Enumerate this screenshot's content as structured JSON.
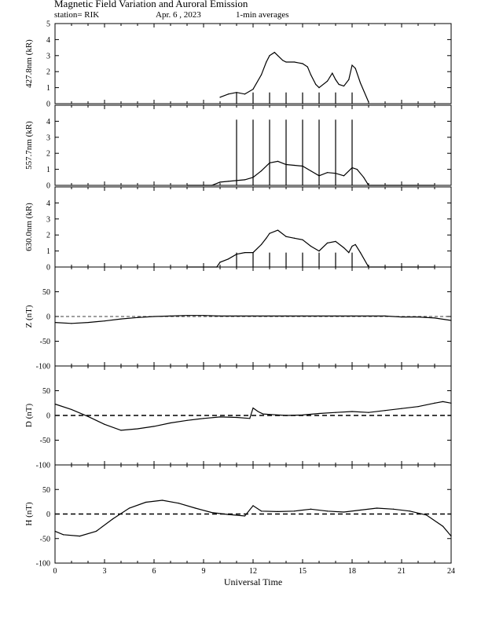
{
  "header": {
    "title": "Magnetic Field Variation and Auroral Emission",
    "station": "station= RIK",
    "date": "Apr. 6 , 2023",
    "averaging": "1-min averages"
  },
  "chart_data": [
    {
      "type": "line",
      "id": "p4278",
      "ylabel": "427.8nm (kR)",
      "ylim": [
        0,
        5
      ],
      "yticks": [
        0,
        1,
        2,
        3,
        4,
        5
      ],
      "xlim": [
        0,
        24
      ],
      "series": [
        {
          "x": [
            10.0,
            10.5,
            11.0,
            11.5,
            12.0,
            12.5,
            12.8,
            13.0,
            13.3,
            13.5,
            13.8,
            14.0,
            14.5,
            15.0,
            15.3,
            15.5,
            15.8,
            16.0,
            16.5,
            16.8,
            17.0,
            17.2,
            17.5,
            17.8,
            18.0,
            18.2,
            18.5,
            19.0
          ],
          "y": [
            0.4,
            0.6,
            0.7,
            0.6,
            0.9,
            1.8,
            2.6,
            3.0,
            3.2,
            3.0,
            2.7,
            2.6,
            2.6,
            2.5,
            2.3,
            1.8,
            1.2,
            1.0,
            1.4,
            1.9,
            1.5,
            1.2,
            1.1,
            1.5,
            2.4,
            2.2,
            1.3,
            0.1
          ]
        }
      ],
      "spikes": [
        11,
        12,
        13,
        14,
        15,
        16,
        17,
        18
      ],
      "spike_height": 0.7
    },
    {
      "type": "line",
      "id": "p5577",
      "ylabel": "557.7nm (kR)",
      "ylim": [
        0,
        5
      ],
      "yticks": [
        0,
        1,
        2,
        3,
        4
      ],
      "xlim": [
        0,
        24
      ],
      "series": [
        {
          "x": [
            8.0,
            9.5,
            10.0,
            10.5,
            11.0,
            11.5,
            12.0,
            12.5,
            13.0,
            13.5,
            14.0,
            14.5,
            15.0,
            15.5,
            16.0,
            16.5,
            17.0,
            17.5,
            18.0,
            18.3,
            18.7,
            19.0,
            23.0
          ],
          "y": [
            0.0,
            0.0,
            0.2,
            0.25,
            0.3,
            0.35,
            0.5,
            0.9,
            1.4,
            1.5,
            1.3,
            1.25,
            1.2,
            0.9,
            0.6,
            0.8,
            0.75,
            0.6,
            1.1,
            1.0,
            0.5,
            0.0,
            0.0
          ]
        }
      ],
      "spikes": [
        11,
        12,
        13,
        14,
        15,
        16,
        17,
        18
      ],
      "spike_height": 4.1
    },
    {
      "type": "line",
      "id": "p6300",
      "ylabel": "630.0nm (kR)",
      "ylim": [
        0,
        5
      ],
      "yticks": [
        0,
        1,
        2,
        3,
        4
      ],
      "xlim": [
        0,
        24
      ],
      "series": [
        {
          "x": [
            8.0,
            9.8,
            10.0,
            10.5,
            11.0,
            11.5,
            12.0,
            12.5,
            12.8,
            13.0,
            13.5,
            14.0,
            14.5,
            15.0,
            15.5,
            16.0,
            16.5,
            17.0,
            17.5,
            17.8,
            18.0,
            18.2,
            18.5,
            19.0,
            23.0
          ],
          "y": [
            0.0,
            0.0,
            0.3,
            0.5,
            0.8,
            0.9,
            0.9,
            1.4,
            1.8,
            2.1,
            2.3,
            1.9,
            1.8,
            1.7,
            1.3,
            1.0,
            1.5,
            1.6,
            1.2,
            0.9,
            1.3,
            1.4,
            0.9,
            0.0,
            0.0
          ]
        }
      ],
      "spikes": [
        11,
        12,
        13,
        14,
        15,
        16,
        17,
        18
      ],
      "spike_height": 0.9
    },
    {
      "type": "line",
      "id": "pZ",
      "ylabel": "Z (nT)",
      "ylim": [
        -100,
        100
      ],
      "yticks": [
        -100,
        -50,
        0,
        50
      ],
      "xlim": [
        0,
        24
      ],
      "zero_line": "thin-dash",
      "series": [
        {
          "x": [
            0,
            1,
            2,
            3,
            4,
            5,
            6,
            7,
            8,
            9,
            10,
            11,
            12,
            13,
            14,
            15,
            16,
            17,
            18,
            19,
            20,
            21,
            22,
            23,
            24
          ],
          "y": [
            -12,
            -14,
            -12,
            -9,
            -5,
            -2,
            0,
            1,
            2,
            2,
            1,
            1,
            1,
            1,
            1,
            1,
            1,
            1,
            1,
            1,
            1,
            -1,
            -1,
            -3,
            -8
          ]
        }
      ]
    },
    {
      "type": "line",
      "id": "pD",
      "ylabel": "D (nT)",
      "ylim": [
        -100,
        100
      ],
      "yticks": [
        -100,
        -50,
        0,
        50
      ],
      "xlim": [
        0,
        24
      ],
      "zero_line": "thick-dash",
      "series": [
        {
          "x": [
            0,
            1,
            2,
            3,
            4,
            5,
            6,
            7,
            8,
            9,
            10,
            11,
            11.8,
            12.0,
            12.3,
            12.6,
            13,
            14,
            15,
            16,
            17,
            18,
            19,
            20,
            21,
            22,
            23,
            23.5,
            24
          ],
          "y": [
            23,
            12,
            -2,
            -18,
            -30,
            -27,
            -22,
            -15,
            -10,
            -6,
            -3,
            -4,
            -6,
            15,
            8,
            3,
            2,
            0,
            1,
            4,
            6,
            8,
            6,
            10,
            14,
            18,
            25,
            28,
            25
          ]
        }
      ]
    },
    {
      "type": "line",
      "id": "pH",
      "ylabel": "H (nT)",
      "ylim": [
        -100,
        100
      ],
      "yticks": [
        -100,
        -50,
        0,
        50
      ],
      "xlim": [
        0,
        24
      ],
      "xticks": [
        0,
        3,
        6,
        9,
        12,
        15,
        18,
        21,
        24
      ],
      "xlabel": "Universal Time",
      "zero_line": "thick-dash",
      "series": [
        {
          "x": [
            0,
            0.5,
            1.5,
            2.5,
            3.5,
            4.5,
            5.5,
            6.5,
            7.5,
            8.5,
            9.5,
            10.5,
            11.5,
            12.0,
            12.5,
            13.5,
            14.5,
            15.5,
            16.5,
            17.5,
            18.5,
            19.5,
            20.5,
            21.5,
            22.5,
            23.5,
            24
          ],
          "y": [
            -35,
            -42,
            -45,
            -35,
            -10,
            12,
            24,
            28,
            22,
            12,
            3,
            -1,
            -4,
            17,
            6,
            5,
            6,
            10,
            6,
            4,
            8,
            12,
            10,
            6,
            -2,
            -25,
            -45
          ]
        }
      ]
    }
  ]
}
